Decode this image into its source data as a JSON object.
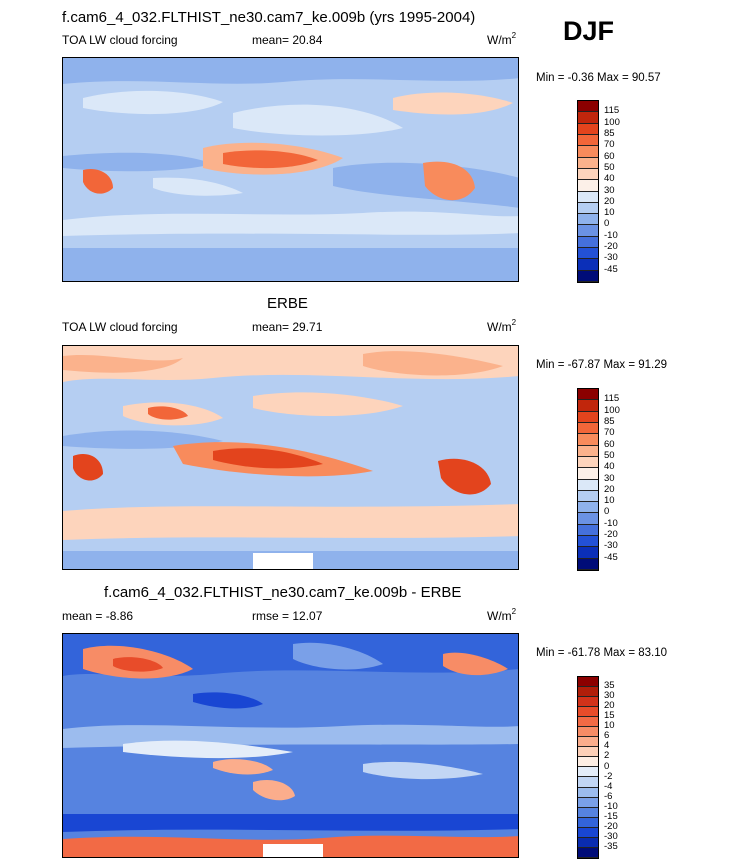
{
  "season": "DJF",
  "variable": "TOA LW cloud forcing",
  "units_base": "W/m",
  "units_exp": "2",
  "panels": [
    {
      "title": "f.cam6_4_032.FLTHIST_ne30.cam7_ke.009b (yrs 1995-2004)",
      "left_label": "TOA LW cloud forcing",
      "stat_text": "mean=  20.84",
      "minmax": "Min =  -0.36 Max =  90.57",
      "levels": [
        "115",
        "100",
        "85",
        "70",
        "60",
        "50",
        "40",
        "30",
        "20",
        "10",
        "0",
        "-10",
        "-20",
        "-30",
        "-45"
      ],
      "colors": [
        "#8b0000",
        "#c1260c",
        "#e3441d",
        "#f26639",
        "#f88b5c",
        "#fbb28c",
        "#fdd4bc",
        "#fcf0e8",
        "#dbe8f8",
        "#b5cef2",
        "#8fb2ec",
        "#6b92e4",
        "#4570dc",
        "#2351d6",
        "#0b2fb8",
        "#000c78"
      ]
    },
    {
      "title": "ERBE",
      "left_label": "TOA LW cloud forcing",
      "stat_text": "mean=  29.71",
      "minmax": "Min = -67.87 Max =  91.29",
      "levels": [
        "115",
        "100",
        "85",
        "70",
        "60",
        "50",
        "40",
        "30",
        "20",
        "10",
        "0",
        "-10",
        "-20",
        "-30",
        "-45"
      ],
      "colors": [
        "#8b0000",
        "#c1260c",
        "#e3441d",
        "#f26639",
        "#f88b5c",
        "#fbb28c",
        "#fdd4bc",
        "#fcf0e8",
        "#dbe8f8",
        "#b5cef2",
        "#8fb2ec",
        "#6b92e4",
        "#4570dc",
        "#2351d6",
        "#0b2fb8",
        "#000c78"
      ]
    },
    {
      "title": "f.cam6_4_032.FLTHIST_ne30.cam7_ke.009b - ERBE",
      "left_label": "mean =  -8.86",
      "stat_text": "rmse =  12.07",
      "minmax": "Min = -61.78 Max =  83.10",
      "levels": [
        "35",
        "30",
        "20",
        "15",
        "10",
        "6",
        "4",
        "2",
        "0",
        "-2",
        "-4",
        "-6",
        "-10",
        "-15",
        "-20",
        "-30",
        "-35"
      ],
      "colors": [
        "#8b0000",
        "#b01e0a",
        "#d2321a",
        "#e84c2a",
        "#f26a45",
        "#f78c66",
        "#fbad8c",
        "#fdd0b8",
        "#fdeee4",
        "#e4edf9",
        "#c2d6f4",
        "#9cbcee",
        "#7aa0e8",
        "#5683e0",
        "#3364da",
        "#1946d3",
        "#0a2cb0",
        "#000c78"
      ]
    }
  ]
}
